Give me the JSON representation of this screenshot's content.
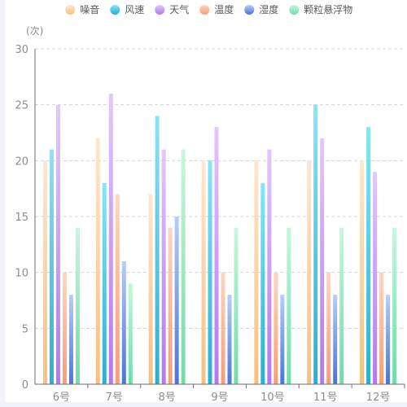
{
  "chart_data": {
    "type": "bar",
    "unit": "(次)",
    "categories": [
      "6号",
      "7号",
      "8号",
      "9号",
      "10号",
      "11号",
      "12号"
    ],
    "ylim": [
      0,
      30
    ],
    "yticks": [
      0,
      5,
      10,
      15,
      20,
      25,
      30
    ],
    "grid": true,
    "legend_position": "top-center",
    "series": [
      {
        "name": "噪音",
        "values": [
          20,
          22,
          17,
          20,
          20,
          20,
          20
        ],
        "color_top": "#fde7cf",
        "color_bottom": "#f6bf80"
      },
      {
        "name": "风速",
        "values": [
          21,
          18,
          24,
          20,
          18,
          25,
          23
        ],
        "color_top": "#8ae4f7",
        "color_bottom": "#2aaed0"
      },
      {
        "name": "天气",
        "values": [
          25,
          26,
          21,
          23,
          21,
          22,
          19
        ],
        "color_top": "#e2c8fa",
        "color_bottom": "#b377f0"
      },
      {
        "name": "温度",
        "values": [
          10,
          17,
          14,
          10,
          10,
          10,
          10
        ],
        "color_top": "#fed6c2",
        "color_bottom": "#f79c78"
      },
      {
        "name": "湿度",
        "values": [
          8,
          11,
          15,
          8,
          8,
          8,
          8
        ],
        "color_top": "#b6cdf7",
        "color_bottom": "#4a74d8"
      },
      {
        "name": "颗粒悬浮物",
        "values": [
          14,
          9,
          21,
          14,
          14,
          14,
          14
        ],
        "color_top": "#c6f7de",
        "color_bottom": "#6fdca8"
      }
    ]
  }
}
